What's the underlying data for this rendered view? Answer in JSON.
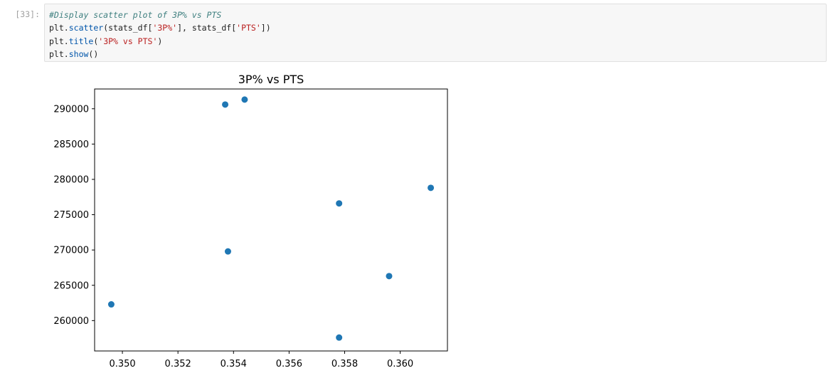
{
  "cell": {
    "prompt": "[33]:",
    "code": {
      "line1": "#Display scatter plot of 3P% vs PTS",
      "line2": {
        "p1": "plt",
        "p2": ".",
        "p3": "scatter",
        "p4": "(stats_df[",
        "p5": "'3P%'",
        "p6": "], stats_df[",
        "p7": "'PTS'",
        "p8": "])"
      },
      "line3": {
        "p1": "plt",
        "p2": ".",
        "p3": "title",
        "p4": "(",
        "p5": "'3P% vs PTS'",
        "p6": ")"
      },
      "line4": {
        "p1": "plt",
        "p2": ".",
        "p3": "show",
        "p4": "()"
      }
    }
  },
  "chart_data": {
    "type": "scatter",
    "title": "3P% vs PTS",
    "xlabel": "",
    "ylabel": "",
    "xlim": [
      0.349,
      0.3617
    ],
    "ylim": [
      255700,
      292800
    ],
    "xticks": [
      0.35,
      0.352,
      0.354,
      0.356,
      0.358,
      0.36
    ],
    "xtick_labels": [
      "0.350",
      "0.352",
      "0.354",
      "0.356",
      "0.358",
      "0.360"
    ],
    "yticks": [
      260000,
      265000,
      270000,
      275000,
      280000,
      285000,
      290000
    ],
    "ytick_labels": [
      "260000",
      "265000",
      "270000",
      "275000",
      "280000",
      "285000",
      "290000"
    ],
    "grid": false,
    "color": "#1f77b4",
    "points": [
      {
        "x": 0.3537,
        "y": 290600
      },
      {
        "x": 0.3544,
        "y": 291300
      },
      {
        "x": 0.3611,
        "y": 278800
      },
      {
        "x": 0.3578,
        "y": 276600
      },
      {
        "x": 0.3538,
        "y": 269800
      },
      {
        "x": 0.3596,
        "y": 266300
      },
      {
        "x": 0.3496,
        "y": 262300
      },
      {
        "x": 0.3578,
        "y": 257600
      }
    ]
  }
}
